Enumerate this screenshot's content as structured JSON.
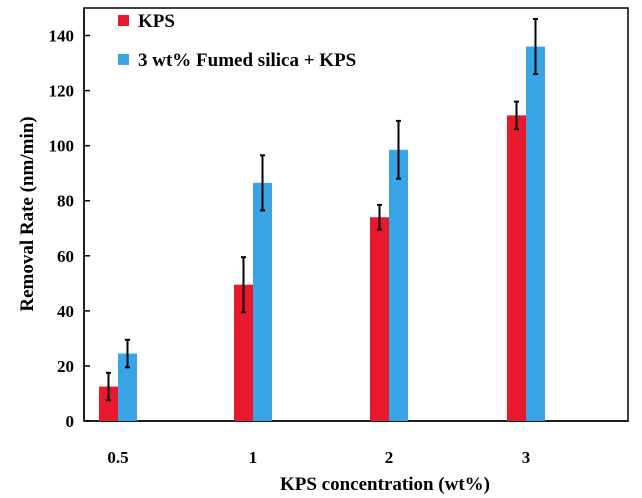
{
  "chart_data": {
    "type": "bar",
    "categories": [
      "0.5",
      "1",
      "2",
      "3"
    ],
    "xlabel": "KPS concentration (wt%)",
    "ylabel": "Removal Rate (nm/min)",
    "ylim": [
      0,
      150
    ],
    "yticks": [
      0,
      20,
      40,
      60,
      80,
      100,
      120,
      140
    ],
    "grid": false,
    "legend_position": "top-left",
    "series": [
      {
        "name": "KPS",
        "color": "#e8192c",
        "values": [
          12.5,
          49.5,
          74,
          111
        ],
        "errors": [
          5,
          10,
          4.5,
          5
        ]
      },
      {
        "name": "3 wt% Fumed silica + KPS",
        "color": "#3aa5e6",
        "values": [
          24.5,
          86.5,
          98.5,
          136
        ],
        "errors": [
          5,
          10,
          10.5,
          10
        ]
      }
    ]
  }
}
